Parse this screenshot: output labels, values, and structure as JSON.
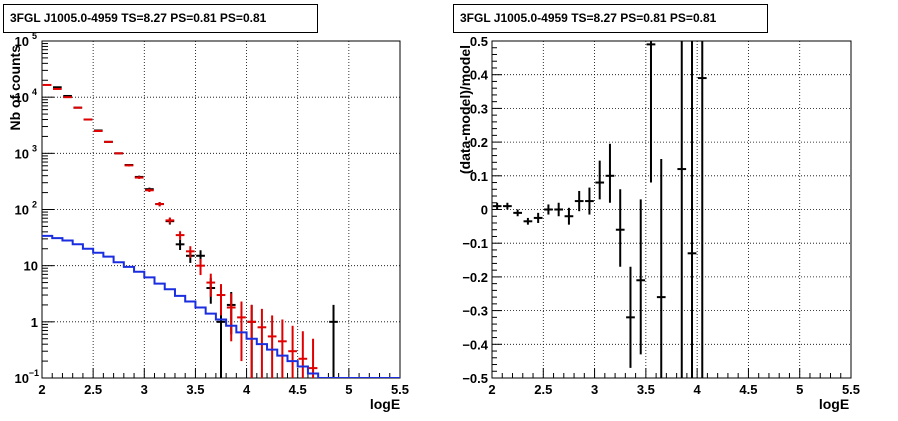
{
  "chart_data": [
    {
      "type": "scatter",
      "title": "3FGL J1005.0-4959 TS=8.27 PS=0.81 PS=0.81",
      "xlabel": "logE",
      "ylabel": "Nb of counts",
      "xlim": [
        2,
        5.5
      ],
      "ylim": [
        0.1,
        100000
      ],
      "yscale": "log",
      "grid": true,
      "x_ticks": [
        "2",
        "2.5",
        "3",
        "3.5",
        "4",
        "4.5",
        "5",
        "5.5"
      ],
      "y_ticks": [
        {
          "value": 0.1,
          "base": "10",
          "exp": "−1"
        },
        {
          "value": 1,
          "base": "1",
          "exp": ""
        },
        {
          "value": 10,
          "base": "10",
          "exp": ""
        },
        {
          "value": 100,
          "base": "10",
          "exp": "2"
        },
        {
          "value": 1000,
          "base": "10",
          "exp": "3"
        },
        {
          "value": 10000,
          "base": "10",
          "exp": "4"
        },
        {
          "value": 100000,
          "base": "10",
          "exp": "5"
        }
      ],
      "series": [
        {
          "color": "#000000",
          "points": [
            {
              "x": 2.15,
              "y": 15000,
              "lo": 14800,
              "hi": 15200
            },
            {
              "x": 2.25,
              "y": 10500,
              "lo": 10300,
              "hi": 10700
            },
            {
              "x": 2.35,
              "y": 6500,
              "lo": 6350,
              "hi": 6650
            },
            {
              "x": 2.45,
              "y": 4000,
              "lo": 3900,
              "hi": 4100
            },
            {
              "x": 2.55,
              "y": 2550,
              "lo": 2480,
              "hi": 2620
            },
            {
              "x": 2.65,
              "y": 1600,
              "lo": 1550,
              "hi": 1650
            },
            {
              "x": 2.75,
              "y": 1000,
              "lo": 970,
              "hi": 1030
            },
            {
              "x": 2.85,
              "y": 620,
              "lo": 595,
              "hi": 645
            },
            {
              "x": 2.95,
              "y": 380,
              "lo": 360,
              "hi": 400
            },
            {
              "x": 3.05,
              "y": 230,
              "lo": 215,
              "hi": 245
            },
            {
              "x": 3.15,
              "y": 125,
              "lo": 114,
              "hi": 136
            },
            {
              "x": 3.25,
              "y": 62,
              "lo": 54,
              "hi": 70
            },
            {
              "x": 3.35,
              "y": 24,
              "lo": 19,
              "hi": 29
            },
            {
              "x": 3.45,
              "y": 15,
              "lo": 11.2,
              "hi": 18.8
            },
            {
              "x": 3.55,
              "y": 15,
              "lo": 11.2,
              "hi": 18.8
            },
            {
              "x": 3.65,
              "y": 4,
              "lo": 2.1,
              "hi": 6
            },
            {
              "x": 3.75,
              "y": 1,
              "lo": 0.1,
              "hi": 2
            },
            {
              "x": 3.85,
              "y": 2,
              "lo": 0.6,
              "hi": 3.4
            },
            {
              "x": 4.05,
              "y": 1,
              "lo": 0.1,
              "hi": 2
            },
            {
              "x": 4.85,
              "y": 1,
              "lo": 0.1,
              "hi": 2
            }
          ]
        },
        {
          "color": "#e00000",
          "points": [
            {
              "x": 2.05,
              "y": 16500,
              "lo": 16300,
              "hi": 16700
            },
            {
              "x": 2.15,
              "y": 14000,
              "lo": 13800,
              "hi": 14200
            },
            {
              "x": 2.25,
              "y": 10000,
              "lo": 9800,
              "hi": 10200
            },
            {
              "x": 2.35,
              "y": 6500,
              "lo": 6350,
              "hi": 6650
            },
            {
              "x": 2.45,
              "y": 4000,
              "lo": 3900,
              "hi": 4100
            },
            {
              "x": 2.55,
              "y": 2500,
              "lo": 2430,
              "hi": 2570
            },
            {
              "x": 2.65,
              "y": 1600,
              "lo": 1550,
              "hi": 1650
            },
            {
              "x": 2.75,
              "y": 1000,
              "lo": 970,
              "hi": 1030
            },
            {
              "x": 2.85,
              "y": 610,
              "lo": 585,
              "hi": 635
            },
            {
              "x": 2.95,
              "y": 370,
              "lo": 350,
              "hi": 390
            },
            {
              "x": 3.05,
              "y": 220,
              "lo": 205,
              "hi": 235
            },
            {
              "x": 3.15,
              "y": 125,
              "lo": 114,
              "hi": 136
            },
            {
              "x": 3.25,
              "y": 64,
              "lo": 56,
              "hi": 72
            },
            {
              "x": 3.35,
              "y": 35,
              "lo": 29,
              "hi": 41
            },
            {
              "x": 3.45,
              "y": 18,
              "lo": 13.8,
              "hi": 22.2
            },
            {
              "x": 3.55,
              "y": 10,
              "lo": 6.8,
              "hi": 13.2
            },
            {
              "x": 3.65,
              "y": 5,
              "lo": 2.8,
              "hi": 7.2
            },
            {
              "x": 3.75,
              "y": 3,
              "lo": 1.3,
              "hi": 4.7
            },
            {
              "x": 3.85,
              "y": 1.8,
              "lo": 0.45,
              "hi": 3.2
            },
            {
              "x": 3.95,
              "y": 1.2,
              "lo": 0.2,
              "hi": 2.3
            },
            {
              "x": 4.05,
              "y": 1,
              "lo": 0.1,
              "hi": 2
            },
            {
              "x": 4.15,
              "y": 0.8,
              "lo": 0.1,
              "hi": 1.7
            },
            {
              "x": 4.25,
              "y": 0.55,
              "lo": 0.1,
              "hi": 1.3
            },
            {
              "x": 4.35,
              "y": 0.45,
              "lo": 0.1,
              "hi": 1.1
            },
            {
              "x": 4.45,
              "y": 0.3,
              "lo": 0.1,
              "hi": 0.85
            },
            {
              "x": 4.55,
              "y": 0.22,
              "lo": 0.1,
              "hi": 0.68
            },
            {
              "x": 4.65,
              "y": 0.15,
              "lo": 0.1,
              "hi": 0.5
            }
          ]
        },
        {
          "color": "#1a2ee0",
          "style": "step",
          "bins": [
            {
              "x0": 2.0,
              "x1": 2.1,
              "y": 34
            },
            {
              "x0": 2.1,
              "x1": 2.2,
              "y": 31
            },
            {
              "x0": 2.2,
              "x1": 2.3,
              "y": 28
            },
            {
              "x0": 2.3,
              "x1": 2.4,
              "y": 24
            },
            {
              "x0": 2.4,
              "x1": 2.5,
              "y": 20
            },
            {
              "x0": 2.5,
              "x1": 2.6,
              "y": 17
            },
            {
              "x0": 2.6,
              "x1": 2.7,
              "y": 14.5
            },
            {
              "x0": 2.7,
              "x1": 2.8,
              "y": 11.5
            },
            {
              "x0": 2.8,
              "x1": 2.9,
              "y": 9.5
            },
            {
              "x0": 2.9,
              "x1": 3.0,
              "y": 7.8
            },
            {
              "x0": 3.0,
              "x1": 3.1,
              "y": 6.2
            },
            {
              "x0": 3.1,
              "x1": 3.2,
              "y": 4.8
            },
            {
              "x0": 3.2,
              "x1": 3.3,
              "y": 3.8
            },
            {
              "x0": 3.3,
              "x1": 3.4,
              "y": 2.9
            },
            {
              "x0": 3.4,
              "x1": 3.5,
              "y": 2.3
            },
            {
              "x0": 3.5,
              "x1": 3.6,
              "y": 1.8
            },
            {
              "x0": 3.6,
              "x1": 3.7,
              "y": 1.4
            },
            {
              "x0": 3.7,
              "x1": 3.8,
              "y": 1.1
            },
            {
              "x0": 3.8,
              "x1": 3.9,
              "y": 0.85
            },
            {
              "x0": 3.9,
              "x1": 4.0,
              "y": 0.65
            },
            {
              "x0": 4.0,
              "x1": 4.1,
              "y": 0.5
            },
            {
              "x0": 4.1,
              "x1": 4.2,
              "y": 0.4
            },
            {
              "x0": 4.2,
              "x1": 4.3,
              "y": 0.32
            },
            {
              "x0": 4.3,
              "x1": 4.4,
              "y": 0.25
            },
            {
              "x0": 4.4,
              "x1": 4.5,
              "y": 0.2
            },
            {
              "x0": 4.5,
              "x1": 4.6,
              "y": 0.16
            },
            {
              "x0": 4.6,
              "x1": 4.7,
              "y": 0.12
            },
            {
              "x0": 4.7,
              "x1": 5.5,
              "y": 0.1
            }
          ]
        }
      ]
    },
    {
      "type": "scatter",
      "title": "3FGL J1005.0-4959 TS=8.27 PS=0.81 PS=0.81",
      "xlabel": "logE",
      "ylabel": "(data-model)/model",
      "xlim": [
        2,
        5.5
      ],
      "ylim": [
        -0.5,
        0.5
      ],
      "grid": true,
      "x_ticks": [
        "2",
        "2.5",
        "3",
        "3.5",
        "4",
        "4.5",
        "5",
        "5.5"
      ],
      "y_ticks": [
        "−0.5",
        "−0.4",
        "−0.3",
        "−0.2",
        "−0.1",
        "0",
        "0.1",
        "0.2",
        "0.3",
        "0.4",
        "0.5"
      ],
      "series": [
        {
          "color": "#000000",
          "points": [
            {
              "x": 2.05,
              "y": 0.01,
              "lo": 0.0,
              "hi": 0.02
            },
            {
              "x": 2.15,
              "y": 0.01,
              "lo": 0.0,
              "hi": 0.02
            },
            {
              "x": 2.25,
              "y": -0.01,
              "lo": -0.02,
              "hi": 0.0
            },
            {
              "x": 2.35,
              "y": -0.035,
              "lo": -0.045,
              "hi": -0.025
            },
            {
              "x": 2.45,
              "y": -0.025,
              "lo": -0.04,
              "hi": -0.01
            },
            {
              "x": 2.55,
              "y": 0.0,
              "lo": -0.015,
              "hi": 0.015
            },
            {
              "x": 2.65,
              "y": 0.0,
              "lo": -0.02,
              "hi": 0.02
            },
            {
              "x": 2.75,
              "y": -0.02,
              "lo": -0.045,
              "hi": 0.005
            },
            {
              "x": 2.85,
              "y": 0.025,
              "lo": -0.005,
              "hi": 0.055
            },
            {
              "x": 2.95,
              "y": 0.025,
              "lo": -0.015,
              "hi": 0.065
            },
            {
              "x": 3.05,
              "y": 0.08,
              "lo": 0.03,
              "hi": 0.145
            },
            {
              "x": 3.15,
              "y": 0.1,
              "lo": 0.02,
              "hi": 0.195
            },
            {
              "x": 3.25,
              "y": -0.06,
              "lo": -0.17,
              "hi": 0.06
            },
            {
              "x": 3.35,
              "y": -0.32,
              "lo": -0.47,
              "hi": -0.17
            },
            {
              "x": 3.45,
              "y": -0.21,
              "lo": -0.43,
              "hi": 0.03
            },
            {
              "x": 3.55,
              "y": 0.49,
              "lo": 0.08,
              "hi": 0.5
            },
            {
              "x": 3.65,
              "y": -0.26,
              "lo": -0.5,
              "hi": 0.15
            },
            {
              "x": 3.85,
              "y": 0.12,
              "lo": -0.5,
              "hi": 0.5
            },
            {
              "x": 3.95,
              "y": -0.13,
              "lo": -0.5,
              "hi": 0.5
            },
            {
              "x": 4.05,
              "y": 0.39,
              "lo": -0.5,
              "hi": 0.5
            }
          ]
        }
      ]
    }
  ]
}
